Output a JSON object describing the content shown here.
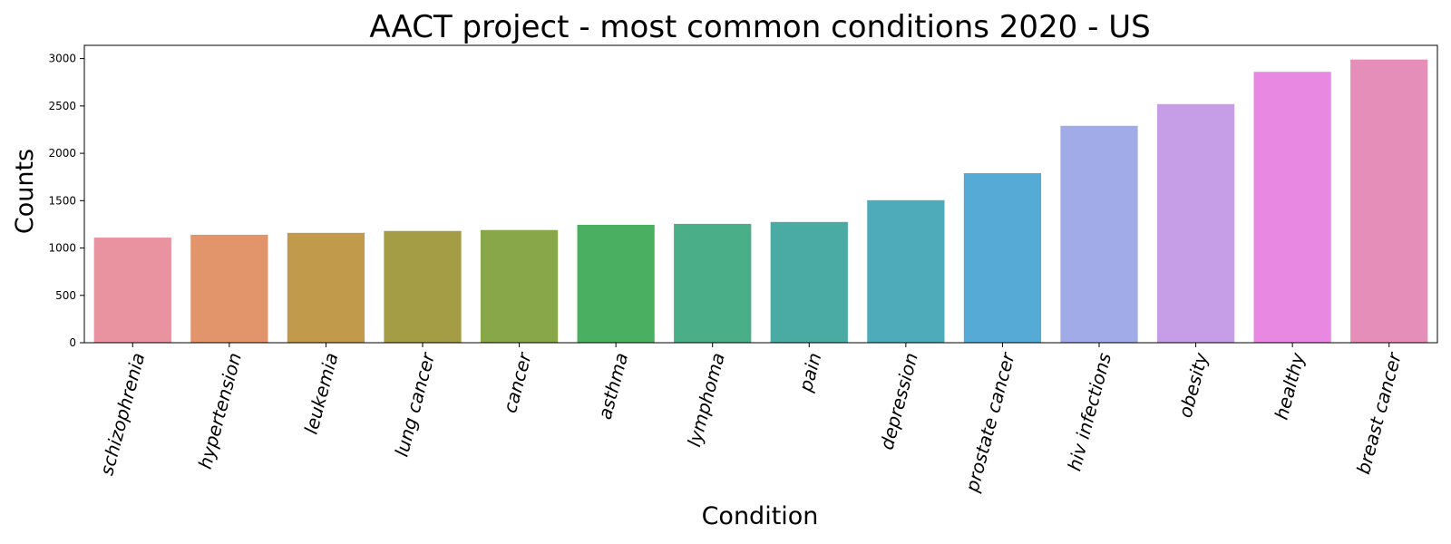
{
  "chart_data": {
    "type": "bar",
    "title": "AACT project - most common conditions 2020 - US",
    "xlabel": "Condition",
    "ylabel": "Counts",
    "ylim": [
      0,
      3140
    ],
    "yticks": [
      0,
      500,
      1000,
      1500,
      2000,
      2500,
      3000
    ],
    "grid": false,
    "categories": [
      "schizophrenia",
      "hypertension",
      "leukemia",
      "lung cancer",
      "cancer",
      "asthma",
      "lymphoma",
      "pain",
      "depression",
      "prostate cancer",
      "hiv infections",
      "obesity",
      "healthy",
      "breast cancer"
    ],
    "values": [
      1110,
      1140,
      1160,
      1180,
      1190,
      1245,
      1255,
      1275,
      1505,
      1790,
      2290,
      2520,
      2860,
      2990
    ],
    "colors": [
      "#e8939f",
      "#e2956a",
      "#c19a4c",
      "#a59d45",
      "#88a748",
      "#4aaf61",
      "#4aae88",
      "#4aaba4",
      "#4eabb9",
      "#55aad6",
      "#a0abe8",
      "#c69ee7",
      "#e888e2",
      "#e68eba"
    ]
  }
}
